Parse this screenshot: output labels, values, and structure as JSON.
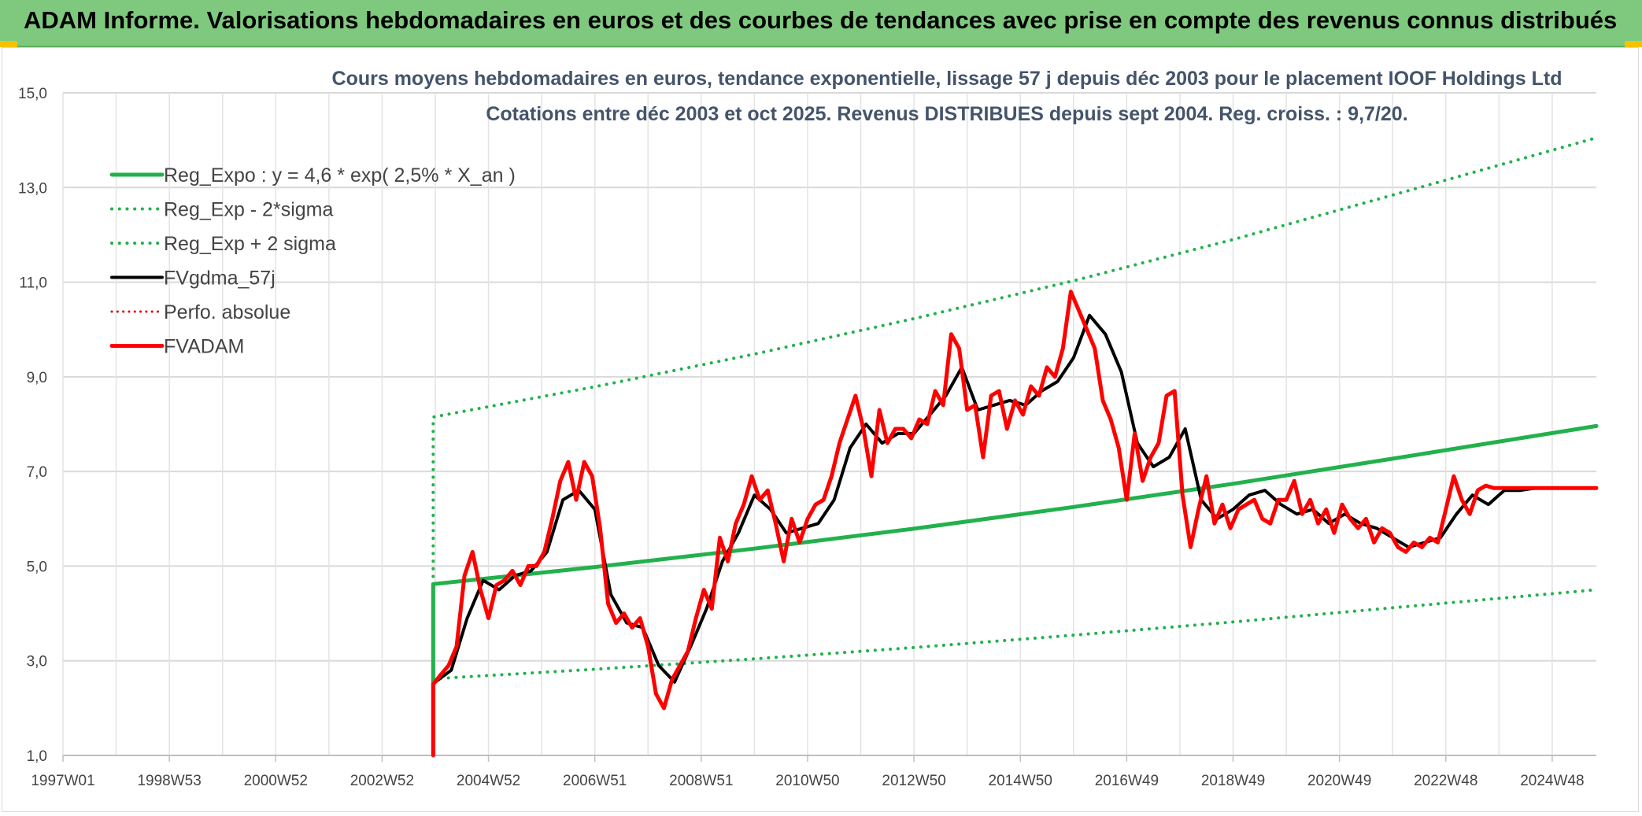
{
  "page": {
    "title": "ADAM Informe. Valorisations hebdomadaires en euros et des courbes de tendances avec prise en compte des revenus connus distribués"
  },
  "chart_data": {
    "type": "line",
    "title": "Cours moyens hebdomadaires en euros, tendance exponentielle, lissage 57 j depuis déc 2003 pour le placement IOOF Holdings Ltd",
    "subtitle": "Cotations entre déc 2003 et oct 2025. Revenus DISTRIBUES depuis sept 2004. Reg. croiss. : 9,7/20.",
    "xlabel": "",
    "ylabel": "",
    "xlim": [
      1997.0,
      2025.83
    ],
    "ylim": [
      1.0,
      15.0
    ],
    "grid": true,
    "legend_position": "top-left",
    "x_ticks": [
      {
        "x": 1997.0,
        "label": "1997W01"
      },
      {
        "x": 1999.0,
        "label": "1998W53"
      },
      {
        "x": 2001.0,
        "label": "2000W52"
      },
      {
        "x": 2003.0,
        "label": "2002W52"
      },
      {
        "x": 2005.0,
        "label": "2004W52"
      },
      {
        "x": 2007.0,
        "label": "2006W51"
      },
      {
        "x": 2009.0,
        "label": "2008W51"
      },
      {
        "x": 2011.0,
        "label": "2010W50"
      },
      {
        "x": 2013.0,
        "label": "2012W50"
      },
      {
        "x": 2015.0,
        "label": "2014W50"
      },
      {
        "x": 2017.0,
        "label": "2016W49"
      },
      {
        "x": 2019.0,
        "label": "2018W49"
      },
      {
        "x": 2021.0,
        "label": "2020W49"
      },
      {
        "x": 2023.0,
        "label": "2022W48"
      },
      {
        "x": 2025.0,
        "label": "2024W48"
      }
    ],
    "y_ticks": [
      {
        "y": 1.0,
        "label": "1,0"
      },
      {
        "y": 3.0,
        "label": "3,0"
      },
      {
        "y": 5.0,
        "label": "5,0"
      },
      {
        "y": 7.0,
        "label": "7,0"
      },
      {
        "y": 9.0,
        "label": "9,0"
      },
      {
        "y": 11.0,
        "label": "11,0"
      },
      {
        "y": 13.0,
        "label": "13,0"
      },
      {
        "y": 15.0,
        "label": "15,0"
      }
    ],
    "series": [
      {
        "name": "Reg_Expo : y = 4,6 * exp( 2,5% *  X_an )",
        "color": "#22b14c",
        "style": "solid",
        "width": 5,
        "x": [
          2003.96,
          2003.96,
          2007.0,
          2010.0,
          2013.0,
          2016.0,
          2019.0,
          2022.0,
          2025.83
        ],
        "y": [
          2.5,
          4.62,
          4.98,
          5.37,
          5.79,
          6.25,
          6.74,
          7.27,
          7.96
        ]
      },
      {
        "name": "Reg_Exp - 2*sigma",
        "color": "#22b14c",
        "style": "dotted",
        "width": 4,
        "x": [
          2003.96,
          2007.0,
          2010.0,
          2013.0,
          2016.0,
          2019.0,
          2022.0,
          2025.83
        ],
        "y": [
          2.62,
          2.82,
          3.04,
          3.28,
          3.54,
          3.82,
          4.12,
          4.5
        ]
      },
      {
        "name": "Reg_Exp + 2 sigma",
        "color": "#22b14c",
        "style": "dotted",
        "width": 4,
        "x": [
          2003.96,
          2003.96,
          2007.0,
          2010.0,
          2013.0,
          2016.0,
          2019.0,
          2022.0,
          2025.83
        ],
        "y": [
          4.62,
          8.15,
          8.79,
          9.48,
          10.23,
          11.03,
          11.9,
          12.84,
          14.05
        ]
      },
      {
        "name": "FVgdma_57j",
        "color": "#000000",
        "style": "solid",
        "width": 4,
        "x": [
          2004.0,
          2004.3,
          2004.6,
          2004.9,
          2005.2,
          2005.5,
          2005.8,
          2006.1,
          2006.4,
          2006.7,
          2007.0,
          2007.3,
          2007.6,
          2007.9,
          2008.2,
          2008.5,
          2008.8,
          2009.1,
          2009.4,
          2009.7,
          2010.0,
          2010.3,
          2010.6,
          2010.9,
          2011.2,
          2011.5,
          2011.8,
          2012.1,
          2012.4,
          2012.7,
          2013.0,
          2013.3,
          2013.6,
          2013.9,
          2014.2,
          2014.5,
          2014.8,
          2015.1,
          2015.4,
          2015.7,
          2016.0,
          2016.3,
          2016.6,
          2016.9,
          2017.2,
          2017.5,
          2017.8,
          2018.1,
          2018.4,
          2018.7,
          2019.0,
          2019.3,
          2019.6,
          2019.9,
          2020.2,
          2020.5,
          2020.8,
          2021.1,
          2021.4,
          2021.7,
          2022.0,
          2022.3,
          2022.6,
          2022.9,
          2023.2,
          2023.5,
          2023.8,
          2024.1,
          2024.4,
          2024.7,
          2025.0,
          2025.3,
          2025.6,
          2025.8
        ],
        "y": [
          2.55,
          2.8,
          3.9,
          4.7,
          4.5,
          4.8,
          4.9,
          5.3,
          6.4,
          6.6,
          6.2,
          4.4,
          3.8,
          3.7,
          2.9,
          2.55,
          3.3,
          4.1,
          5.1,
          5.7,
          6.5,
          6.2,
          5.7,
          5.8,
          5.9,
          6.4,
          7.5,
          8.0,
          7.6,
          7.8,
          7.8,
          8.2,
          8.6,
          9.2,
          8.3,
          8.4,
          8.5,
          8.4,
          8.7,
          8.9,
          9.4,
          10.3,
          9.9,
          9.1,
          7.6,
          7.1,
          7.3,
          7.9,
          6.4,
          6.0,
          6.2,
          6.5,
          6.6,
          6.3,
          6.1,
          6.2,
          5.9,
          6.1,
          5.9,
          5.8,
          5.6,
          5.4,
          5.5,
          5.6,
          6.1,
          6.5,
          6.3,
          6.6,
          6.6,
          6.65,
          6.65,
          6.65,
          6.65,
          6.65
        ]
      },
      {
        "name": "Perfo. absolue",
        "color": "#e60000",
        "style": "dotted",
        "width": 3,
        "x": [],
        "y": []
      },
      {
        "name": "FVADAM",
        "color": "#ff0000",
        "style": "solid",
        "width": 5,
        "x": [
          2003.96,
          2003.96,
          2004.1,
          2004.25,
          2004.4,
          2004.55,
          2004.7,
          2004.85,
          2005.0,
          2005.15,
          2005.3,
          2005.45,
          2005.6,
          2005.75,
          2005.9,
          2006.05,
          2006.2,
          2006.35,
          2006.5,
          2006.65,
          2006.8,
          2006.95,
          2007.1,
          2007.25,
          2007.4,
          2007.55,
          2007.7,
          2007.85,
          2008.0,
          2008.15,
          2008.3,
          2008.45,
          2008.6,
          2008.75,
          2008.9,
          2009.05,
          2009.2,
          2009.35,
          2009.5,
          2009.65,
          2009.8,
          2009.95,
          2010.1,
          2010.25,
          2010.4,
          2010.55,
          2010.7,
          2010.85,
          2011.0,
          2011.15,
          2011.3,
          2011.45,
          2011.6,
          2011.75,
          2011.9,
          2012.05,
          2012.2,
          2012.35,
          2012.5,
          2012.65,
          2012.8,
          2012.95,
          2013.1,
          2013.25,
          2013.4,
          2013.55,
          2013.7,
          2013.85,
          2014.0,
          2014.15,
          2014.3,
          2014.45,
          2014.6,
          2014.75,
          2014.9,
          2015.05,
          2015.2,
          2015.35,
          2015.5,
          2015.65,
          2015.8,
          2015.95,
          2016.1,
          2016.25,
          2016.4,
          2016.55,
          2016.7,
          2016.85,
          2017.0,
          2017.15,
          2017.3,
          2017.45,
          2017.6,
          2017.75,
          2017.9,
          2018.05,
          2018.2,
          2018.35,
          2018.5,
          2018.65,
          2018.8,
          2018.95,
          2019.1,
          2019.25,
          2019.4,
          2019.55,
          2019.7,
          2019.85,
          2020.0,
          2020.15,
          2020.3,
          2020.45,
          2020.6,
          2020.75,
          2020.9,
          2021.05,
          2021.2,
          2021.35,
          2021.5,
          2021.65,
          2021.8,
          2021.95,
          2022.1,
          2022.25,
          2022.4,
          2022.55,
          2022.7,
          2022.85,
          2023.0,
          2023.15,
          2023.3,
          2023.45,
          2023.6,
          2023.75,
          2023.9,
          2024.05,
          2024.2,
          2024.35,
          2024.5,
          2024.65,
          2024.8,
          2024.95,
          2025.1,
          2025.25,
          2025.4,
          2025.55,
          2025.7,
          2025.83
        ],
        "y": [
          1.0,
          2.5,
          2.7,
          2.9,
          3.3,
          4.8,
          5.3,
          4.5,
          3.9,
          4.6,
          4.7,
          4.9,
          4.6,
          5.0,
          5.0,
          5.3,
          6.0,
          6.8,
          7.2,
          6.4,
          7.2,
          6.9,
          5.8,
          4.2,
          3.8,
          4.0,
          3.7,
          3.9,
          3.3,
          2.3,
          2.0,
          2.6,
          2.9,
          3.2,
          3.9,
          4.5,
          4.1,
          5.6,
          5.1,
          5.9,
          6.3,
          6.9,
          6.4,
          6.6,
          5.9,
          5.1,
          6.0,
          5.5,
          6.0,
          6.3,
          6.4,
          6.9,
          7.6,
          8.1,
          8.6,
          7.9,
          6.9,
          8.3,
          7.6,
          7.9,
          7.9,
          7.7,
          8.1,
          8.0,
          8.7,
          8.4,
          9.9,
          9.6,
          8.3,
          8.4,
          7.3,
          8.6,
          8.7,
          7.9,
          8.5,
          8.2,
          8.8,
          8.6,
          9.2,
          9.0,
          9.6,
          10.8,
          10.4,
          10.0,
          9.6,
          8.5,
          8.1,
          7.5,
          6.4,
          7.8,
          6.8,
          7.3,
          7.6,
          8.6,
          8.7,
          6.5,
          5.4,
          6.2,
          6.9,
          5.9,
          6.3,
          5.8,
          6.2,
          6.3,
          6.4,
          6.0,
          5.9,
          6.4,
          6.4,
          6.8,
          6.1,
          6.4,
          5.9,
          6.2,
          5.7,
          6.3,
          6.0,
          5.8,
          6.0,
          5.5,
          5.8,
          5.7,
          5.4,
          5.3,
          5.5,
          5.4,
          5.6,
          5.5,
          6.2,
          6.9,
          6.4,
          6.1,
          6.6,
          6.7,
          6.65,
          6.65,
          6.65,
          6.65,
          6.65,
          6.65,
          6.65,
          6.65,
          6.65,
          6.65,
          6.65,
          6.65,
          6.65,
          6.65
        ]
      }
    ]
  }
}
